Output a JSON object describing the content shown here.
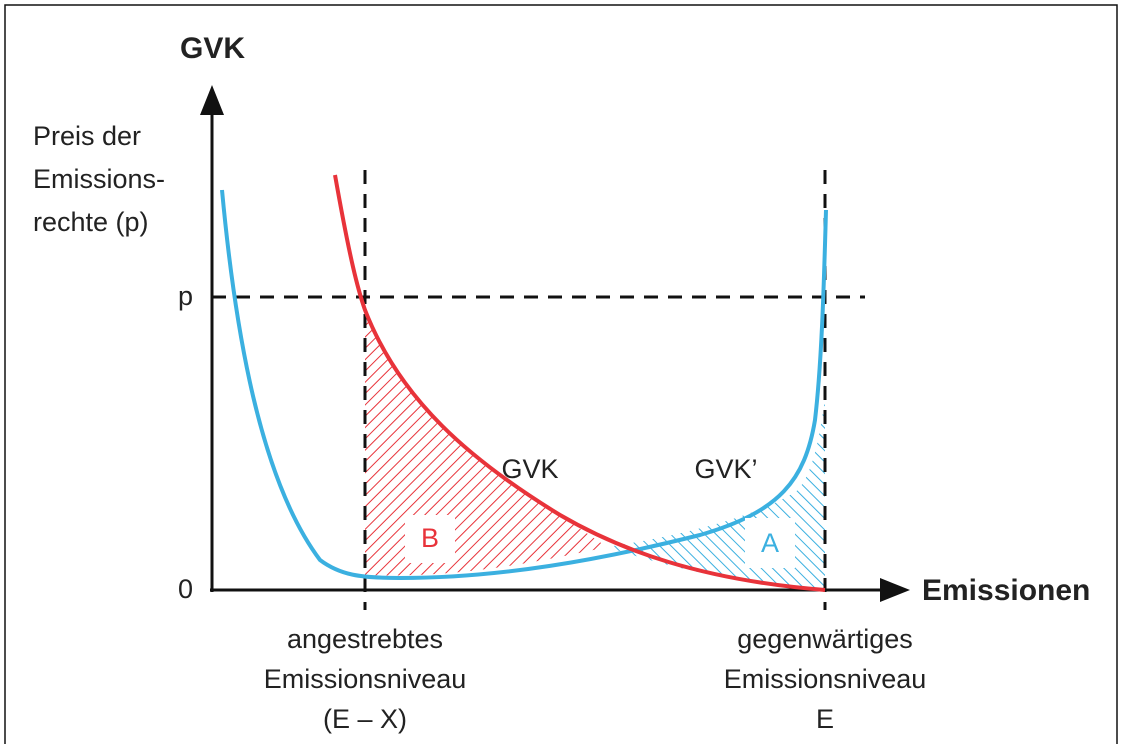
{
  "y_axis": {
    "title": "GVK",
    "label_lines": [
      "Preis der",
      "Emissions-",
      "rechte (p)"
    ],
    "price_label": "p",
    "origin_label": "0"
  },
  "x_axis": {
    "title": "Emissionen"
  },
  "curves": {
    "current": "GVK",
    "alternative": "GVK’"
  },
  "areas": {
    "a": "A",
    "b": "B"
  },
  "x_markers": [
    {
      "lines": [
        "angestrebtes",
        "Emissionsniveau",
        "(E – X)"
      ]
    },
    {
      "lines": [
        "gegenwärtiges",
        "Emissionsniveau",
        "E"
      ]
    }
  ]
}
